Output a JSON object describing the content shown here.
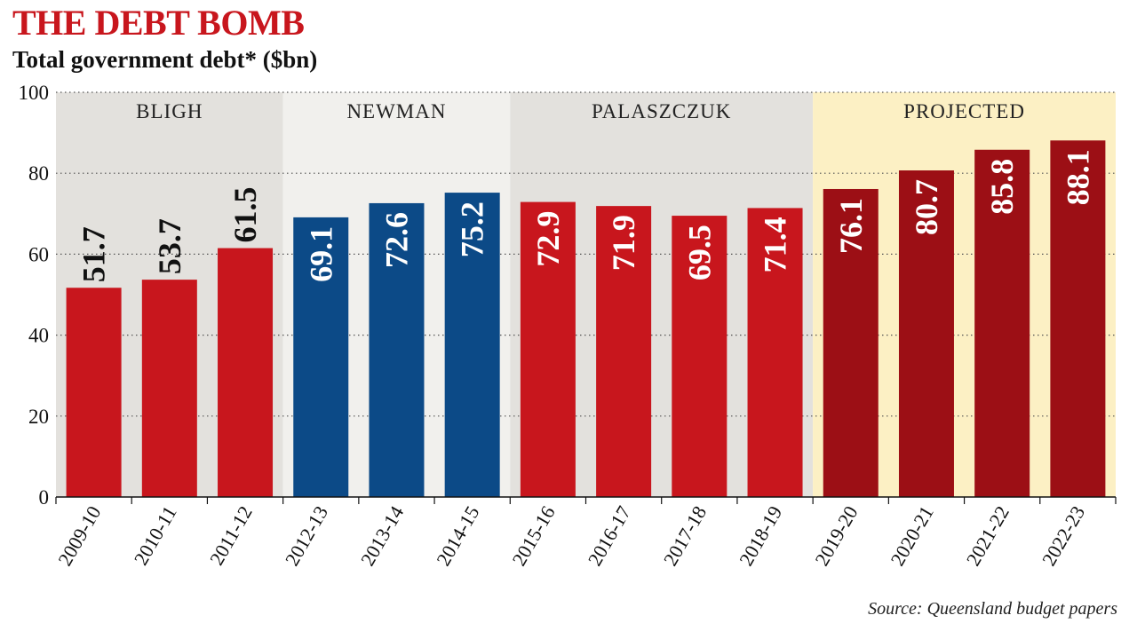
{
  "header": {
    "title": "THE DEBT BOMB",
    "subtitle": "Total government debt* ($bn)"
  },
  "footer": {
    "source": "Source: Queensland budget papers"
  },
  "colors": {
    "bligh": "#c8161d",
    "newman": "#0c4a87",
    "palaszczuk": "#c8161d",
    "projected": "#9c0f15",
    "band_bligh": "#e3e1dd",
    "band_newman": "#f1f0ed",
    "band_palaszczuk": "#e3e1dd",
    "band_projected": "#fcf0c4"
  },
  "chart_data": {
    "type": "bar",
    "title": "THE DEBT BOMB",
    "subtitle": "Total government debt* ($bn)",
    "xlabel": "",
    "ylabel": "",
    "ylim": [
      0,
      100
    ],
    "yticks": [
      0,
      20,
      40,
      60,
      80,
      100
    ],
    "grid": true,
    "categories": [
      "2009-10",
      "2010-11",
      "2011-12",
      "2012-13",
      "2013-14",
      "2014-15",
      "2015-16",
      "2016-17",
      "2017-18",
      "2018-19",
      "2019-20",
      "2020-21",
      "2021-22",
      "2022-23"
    ],
    "values": [
      51.7,
      53.7,
      61.5,
      69.1,
      72.6,
      75.2,
      72.9,
      71.9,
      69.5,
      71.4,
      76.1,
      80.7,
      85.8,
      88.1
    ],
    "data_labels": [
      "51.7",
      "53.7",
      "61.5",
      "69.1",
      "72.6",
      "75.2",
      "72.9",
      "71.9",
      "69.5",
      "71.4",
      "76.1",
      "80.7",
      "85.8",
      "88.1"
    ],
    "periods": [
      {
        "label": "BLIGH",
        "key": "bligh",
        "start": 0,
        "end": 2
      },
      {
        "label": "NEWMAN",
        "key": "newman",
        "start": 3,
        "end": 5
      },
      {
        "label": "PALASZCZUK",
        "key": "palaszczuk",
        "start": 6,
        "end": 9
      },
      {
        "label": "PROJECTED",
        "key": "projected",
        "start": 10,
        "end": 13
      }
    ],
    "source": "Source: Queensland budget papers"
  }
}
